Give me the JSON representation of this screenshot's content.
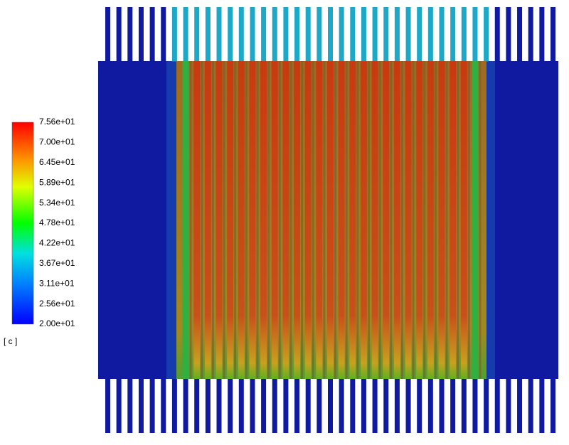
{
  "legend": {
    "tick_labels": [
      "7.56e+01",
      "7.00e+01",
      "6.45e+01",
      "5.89e+01",
      "5.34e+01",
      "4.78e+01",
      "4.22e+01",
      "3.67e+01",
      "3.11e+01",
      "2.56e+01",
      "2.00e+01"
    ],
    "unit": "[ c ]"
  }
}
